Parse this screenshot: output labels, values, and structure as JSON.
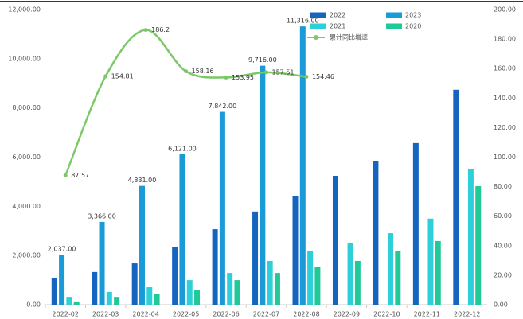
{
  "chart_data": {
    "type": "bar",
    "categories": [
      "2022-02",
      "2022-03",
      "2022-04",
      "2022-05",
      "2022-06",
      "2022-07",
      "2022-08",
      "2022-09",
      "2022-10",
      "2022-11",
      "2022-12"
    ],
    "series": [
      {
        "name": "2022",
        "color": "#1565c0",
        "values": [
          1070,
          1330,
          1680,
          2360,
          3070,
          3790,
          4430,
          5240,
          5830,
          6570,
          8740
        ]
      },
      {
        "name": "2023",
        "color": "#1a9bd7",
        "values": [
          2037,
          3366,
          4831,
          6121,
          7842,
          9716,
          11316,
          null,
          null,
          null,
          null
        ],
        "value_labels": [
          "2,037.00",
          "3,366.00",
          "4,831.00",
          "6,121.00",
          "7,842.00",
          "9,716.00",
          "11,316.00",
          null,
          null,
          null,
          null
        ]
      },
      {
        "name": "2021",
        "color": "#2dd0d8",
        "values": [
          320,
          520,
          710,
          1000,
          1290,
          1780,
          2200,
          2520,
          2910,
          3500,
          5500
        ]
      },
      {
        "name": "2020",
        "color": "#20c997",
        "values": [
          100,
          320,
          450,
          610,
          1000,
          1290,
          1520,
          1780,
          2200,
          2590,
          4820
        ]
      },
      {
        "name": "累计同比增速",
        "type": "line",
        "axis": "y2",
        "color": "#7cc866",
        "values": [
          87.57,
          154.81,
          186.2,
          158.16,
          153.95,
          157.51,
          154.46,
          null,
          null,
          null,
          null
        ],
        "show_labels": true
      }
    ],
    "ylim": [
      0,
      12000
    ],
    "yticks": [
      {
        "value": 0,
        "label": "0.00"
      },
      {
        "value": 2000,
        "label": "2,000.00"
      },
      {
        "value": 4000,
        "label": "4,000.00"
      },
      {
        "value": 6000,
        "label": "6,000.00"
      },
      {
        "value": 8000,
        "label": "8,000.00"
      },
      {
        "value": 10000,
        "label": "10,000.00"
      },
      {
        "value": 12000,
        "label": "12,000.00"
      }
    ],
    "y2lim": [
      0,
      200
    ],
    "y2ticks": [
      {
        "value": 0,
        "label": "0.00"
      },
      {
        "value": 20,
        "label": "20.00"
      },
      {
        "value": 40,
        "label": "40.00"
      },
      {
        "value": 60,
        "label": "60.00"
      },
      {
        "value": 80,
        "label": "80.00"
      },
      {
        "value": 100,
        "label": "100.00"
      },
      {
        "value": 120,
        "label": "120.00"
      },
      {
        "value": 140,
        "label": "140.00"
      },
      {
        "value": 160,
        "label": "160.00"
      },
      {
        "value": 180,
        "label": "180.00"
      },
      {
        "value": 200,
        "label": "200.00"
      }
    ],
    "grid": false,
    "legend": "top-right"
  }
}
